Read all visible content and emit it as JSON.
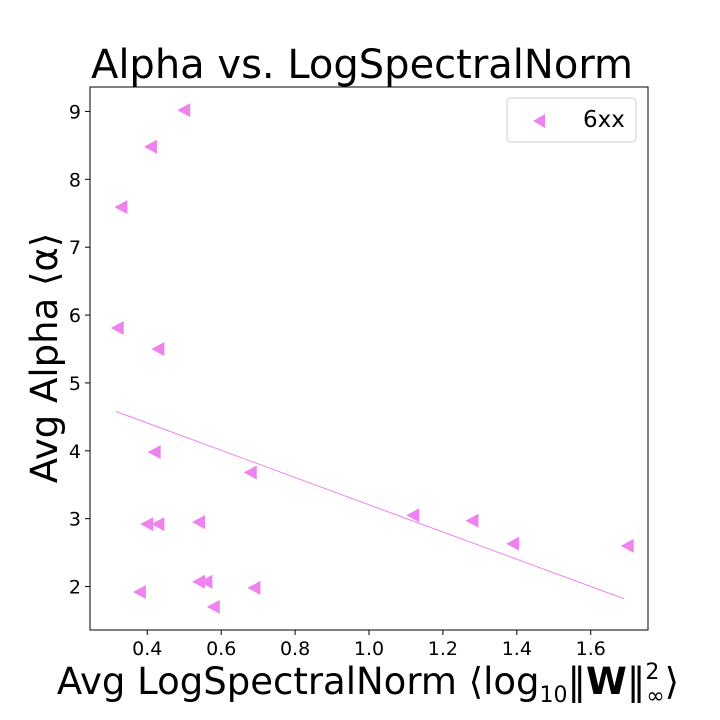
{
  "chart_data": {
    "type": "scatter",
    "title": "Alpha vs. LogSpectralNorm",
    "xlabel": "Avg LogSpectralNorm ⟨log₁₀‖W‖²∞⟩",
    "xlabel_parts": {
      "pre": "Avg LogSpectralNorm ⟨log",
      "sub": "10",
      "norm_open": "‖",
      "bold": "W",
      "norm_close": "‖",
      "sup": "2",
      "sub2": "∞",
      "post": "⟩"
    },
    "ylabel": "Avg Alpha ⟨α⟩",
    "xlim": [
      0.245,
      1.755
    ],
    "ylim": [
      1.36,
      9.36
    ],
    "xticks": [
      0.4,
      0.6,
      0.8,
      1.0,
      1.2,
      1.4,
      1.6
    ],
    "xtick_labels": [
      "0.4",
      "0.6",
      "0.8",
      "1.0",
      "1.2",
      "1.4",
      "1.6"
    ],
    "yticks": [
      2,
      3,
      4,
      5,
      6,
      7,
      8,
      9
    ],
    "ytick_labels": [
      "2",
      "3",
      "4",
      "5",
      "6",
      "7",
      "8",
      "9"
    ],
    "grid": false,
    "legend_position": "top-right",
    "color": "#ee82ee",
    "marker": "triangle-left",
    "series": [
      {
        "name": "6xx",
        "points": [
          [
            0.5,
            9.02
          ],
          [
            0.41,
            8.48
          ],
          [
            0.33,
            7.59
          ],
          [
            0.32,
            5.81
          ],
          [
            0.43,
            5.5
          ],
          [
            0.42,
            3.98
          ],
          [
            0.68,
            3.68
          ],
          [
            1.12,
            3.05
          ],
          [
            1.28,
            2.97
          ],
          [
            1.39,
            2.63
          ],
          [
            1.7,
            2.6
          ],
          [
            0.4,
            2.92
          ],
          [
            0.43,
            2.92
          ],
          [
            0.54,
            2.95
          ],
          [
            0.54,
            2.07
          ],
          [
            0.56,
            2.07
          ],
          [
            0.69,
            1.98
          ],
          [
            0.38,
            1.92
          ],
          [
            0.58,
            1.7
          ]
        ]
      }
    ],
    "fit_line": {
      "x": [
        0.315,
        1.69
      ],
      "y": [
        4.58,
        1.82
      ]
    }
  }
}
